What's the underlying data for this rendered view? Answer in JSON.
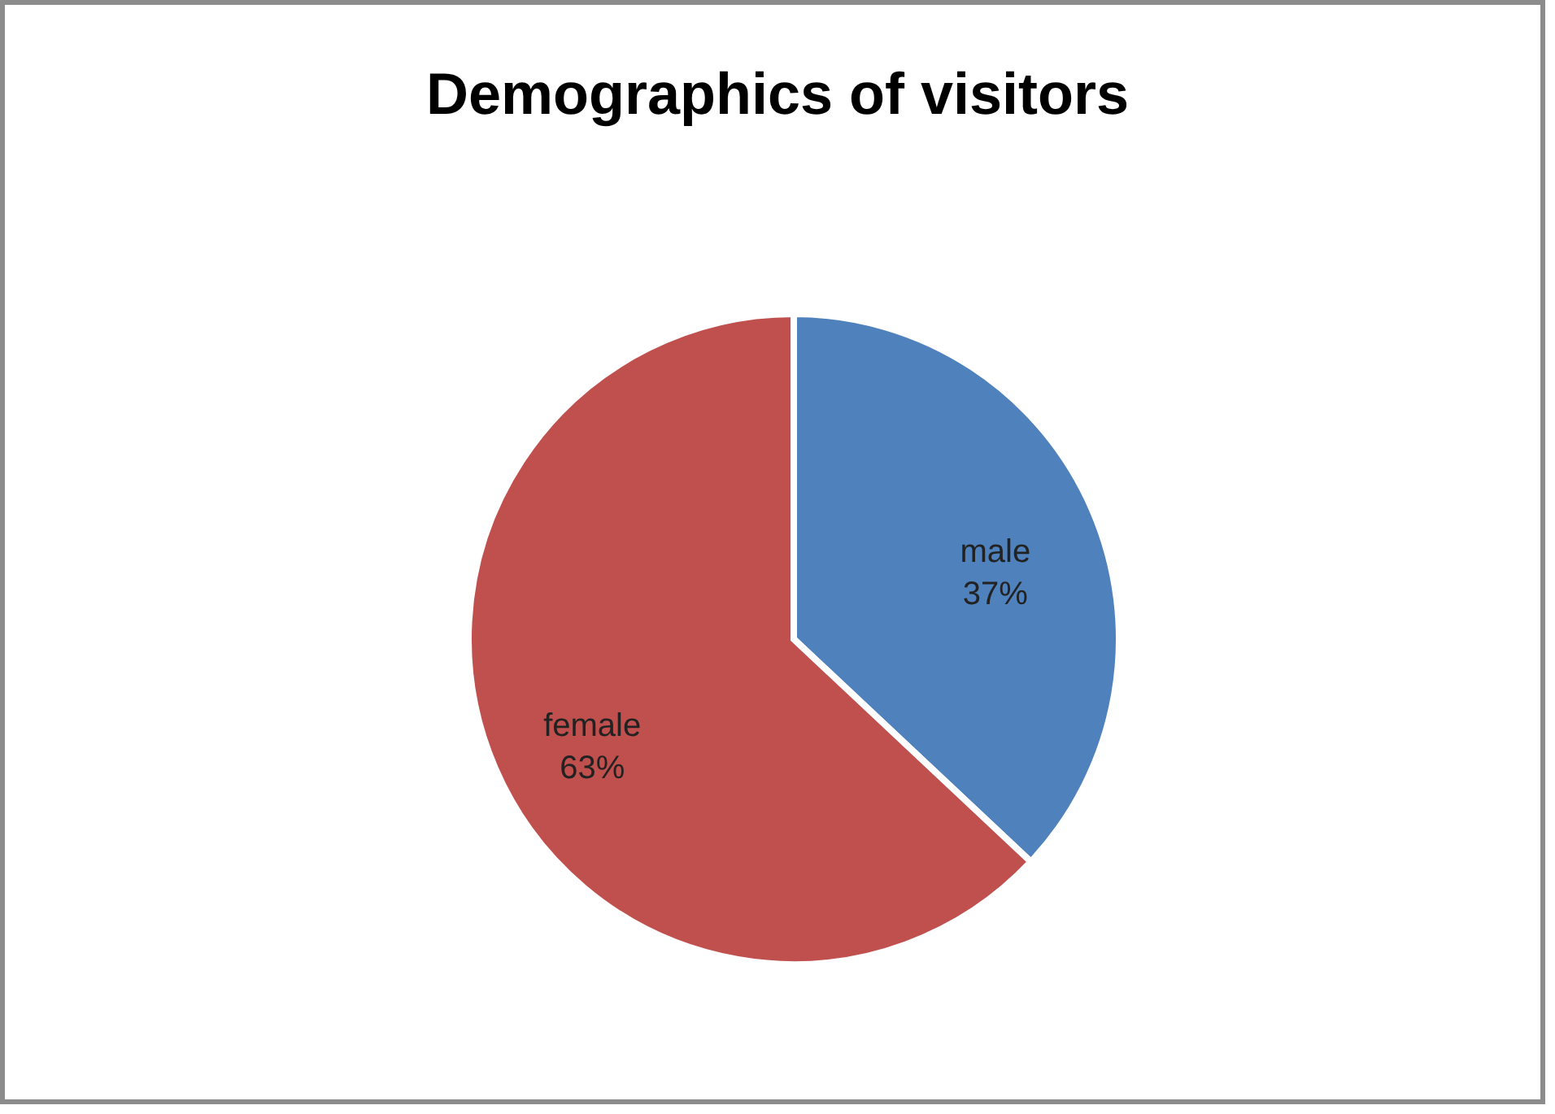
{
  "chart_data": {
    "type": "pie",
    "title": "Demographics of visitors",
    "categories": [
      "male",
      "female"
    ],
    "values": [
      37,
      63
    ],
    "value_labels": [
      "37%",
      "63%"
    ],
    "colors": [
      "#4f81bd",
      "#c0504d"
    ]
  }
}
